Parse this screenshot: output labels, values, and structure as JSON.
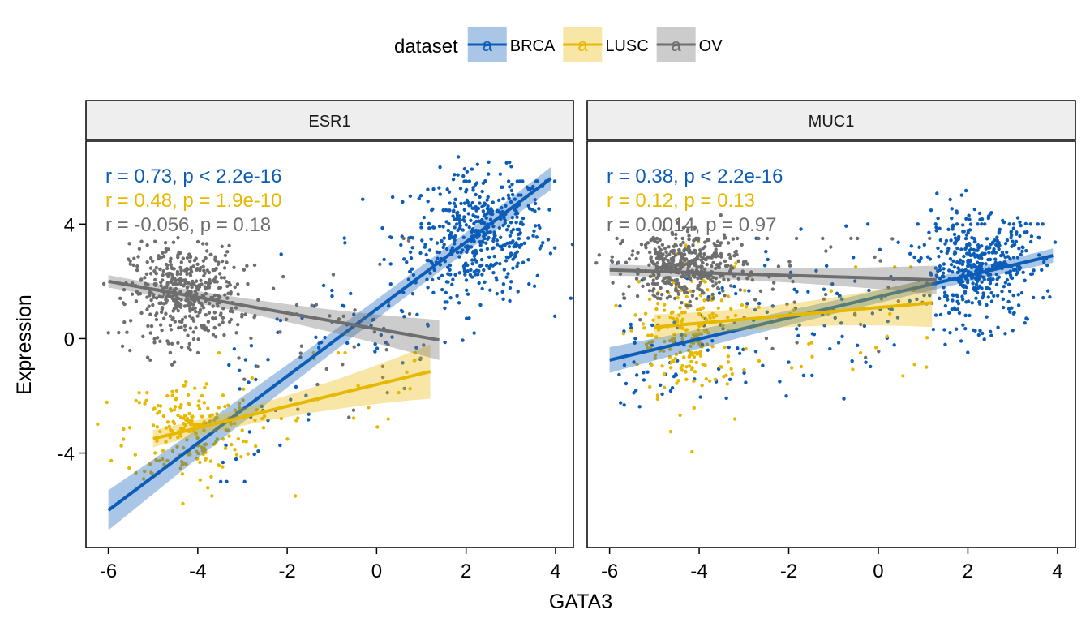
{
  "chart_data": {
    "type": "scatter",
    "xlabel": "GATA3",
    "ylabel": "Expression",
    "xlim": [
      -6.5,
      4.4
    ],
    "ylim": [
      -7.3,
      6.9
    ],
    "x_ticks": [
      -6,
      -4,
      -2,
      0,
      2,
      4
    ],
    "x_tick_labels": [
      "-6",
      "-4",
      "-2",
      "0",
      "2",
      "4"
    ],
    "y_ticks": [
      -4,
      0,
      4
    ],
    "y_tick_labels": [
      "-4",
      "0",
      "4"
    ],
    "grid": false,
    "legend": {
      "title": "dataset",
      "position": "top",
      "entries": [
        {
          "name": "BRCA",
          "color": "#0C5DB8",
          "key_glyph": "a"
        },
        {
          "name": "LUSC",
          "color": "#E7B800",
          "key_glyph": "a"
        },
        {
          "name": "OV",
          "color": "#6E6E6E",
          "key_glyph": "a"
        }
      ]
    },
    "colors": {
      "BRCA": "#0C5DB8",
      "LUSC": "#E7B800",
      "OV": "#6E6E6E",
      "strip_bg": "#EEEEEE"
    },
    "facets": [
      {
        "title": "ESR1",
        "annotations": [
          {
            "series": "BRCA",
            "text": "r = 0.73, p < 2.2e-16"
          },
          {
            "series": "LUSC",
            "text": "r = 0.48, p = 1.9e-10"
          },
          {
            "series": "OV",
            "text": "r = -0.056, p = 0.18"
          }
        ],
        "series": [
          {
            "name": "BRCA",
            "cluster": {
              "cx": 2.3,
              "cy": 3.6,
              "sx": 0.75,
              "sy": 1.1,
              "n": 420
            },
            "spread": {
              "x": [
                -3.5,
                4.0
              ],
              "y": [
                -5.0,
                5.5
              ],
              "n": 160
            },
            "fit": {
              "x": [
                -6.0,
                3.9
              ],
              "y": [
                -6.0,
                5.6
              ],
              "ci_start": 0.7,
              "ci_mid": 0.18,
              "ci_end": 0.4
            }
          },
          {
            "name": "LUSC",
            "cluster": {
              "cx": -4.2,
              "cy": -3.2,
              "sx": 0.7,
              "sy": 0.9,
              "n": 190
            },
            "spread": {
              "x": [
                -5.0,
                1.2
              ],
              "y": [
                -5.5,
                -0.5
              ],
              "n": 40
            },
            "fit": {
              "x": [
                -5.0,
                1.2
              ],
              "y": [
                -3.5,
                -1.15
              ],
              "ci_start": 0.3,
              "ci_mid": 0.15,
              "ci_end": 0.95
            }
          },
          {
            "name": "OV",
            "cluster": {
              "cx": -4.3,
              "cy": 1.6,
              "sx": 0.6,
              "sy": 0.8,
              "n": 440
            },
            "spread": {
              "x": [
                -5.8,
                1.4
              ],
              "y": [
                -5.0,
                3.5
              ],
              "n": 70
            },
            "fit": {
              "x": [
                -6.0,
                1.4
              ],
              "y": [
                2.0,
                -0.05
              ],
              "ci_start": 0.22,
              "ci_mid": 0.12,
              "ci_end": 0.7
            }
          }
        ]
      },
      {
        "title": "MUC1",
        "annotations": [
          {
            "series": "BRCA",
            "text": "r = 0.38, p < 2.2e-16"
          },
          {
            "series": "LUSC",
            "text": "r = 0.12, p = 0.13"
          },
          {
            "series": "OV",
            "text": "r = 0.0014, p = 0.97"
          }
        ],
        "series": [
          {
            "name": "BRCA",
            "cluster": {
              "cx": 2.2,
              "cy": 2.5,
              "sx": 0.6,
              "sy": 0.9,
              "n": 400
            },
            "spread": {
              "x": [
                -6.0,
                3.9
              ],
              "y": [
                -2.8,
                4.0
              ],
              "n": 200
            },
            "fit": {
              "x": [
                -6.0,
                3.9
              ],
              "y": [
                -0.75,
                2.9
              ],
              "ci_start": 0.45,
              "ci_mid": 0.12,
              "ci_end": 0.25
            }
          },
          {
            "name": "LUSC",
            "cluster": {
              "cx": -4.2,
              "cy": 0.1,
              "sx": 0.55,
              "sy": 1.2,
              "n": 200
            },
            "spread": {
              "x": [
                -5.0,
                1.2
              ],
              "y": [
                -2.0,
                2.5
              ],
              "n": 40
            },
            "fit": {
              "x": [
                -5.0,
                1.2
              ],
              "y": [
                0.4,
                1.25
              ],
              "ci_start": 0.45,
              "ci_mid": 0.18,
              "ci_end": 0.85
            }
          },
          {
            "name": "OV",
            "cluster": {
              "cx": -4.3,
              "cy": 2.5,
              "sx": 0.65,
              "sy": 0.55,
              "n": 430
            },
            "spread": {
              "x": [
                -6.0,
                1.3
              ],
              "y": [
                -3.3,
                3.5
              ],
              "n": 60
            },
            "fit": {
              "x": [
                -6.0,
                1.3
              ],
              "y": [
                2.4,
                2.05
              ],
              "ci_start": 0.2,
              "ci_mid": 0.12,
              "ci_end": 0.5
            }
          }
        ]
      }
    ]
  }
}
